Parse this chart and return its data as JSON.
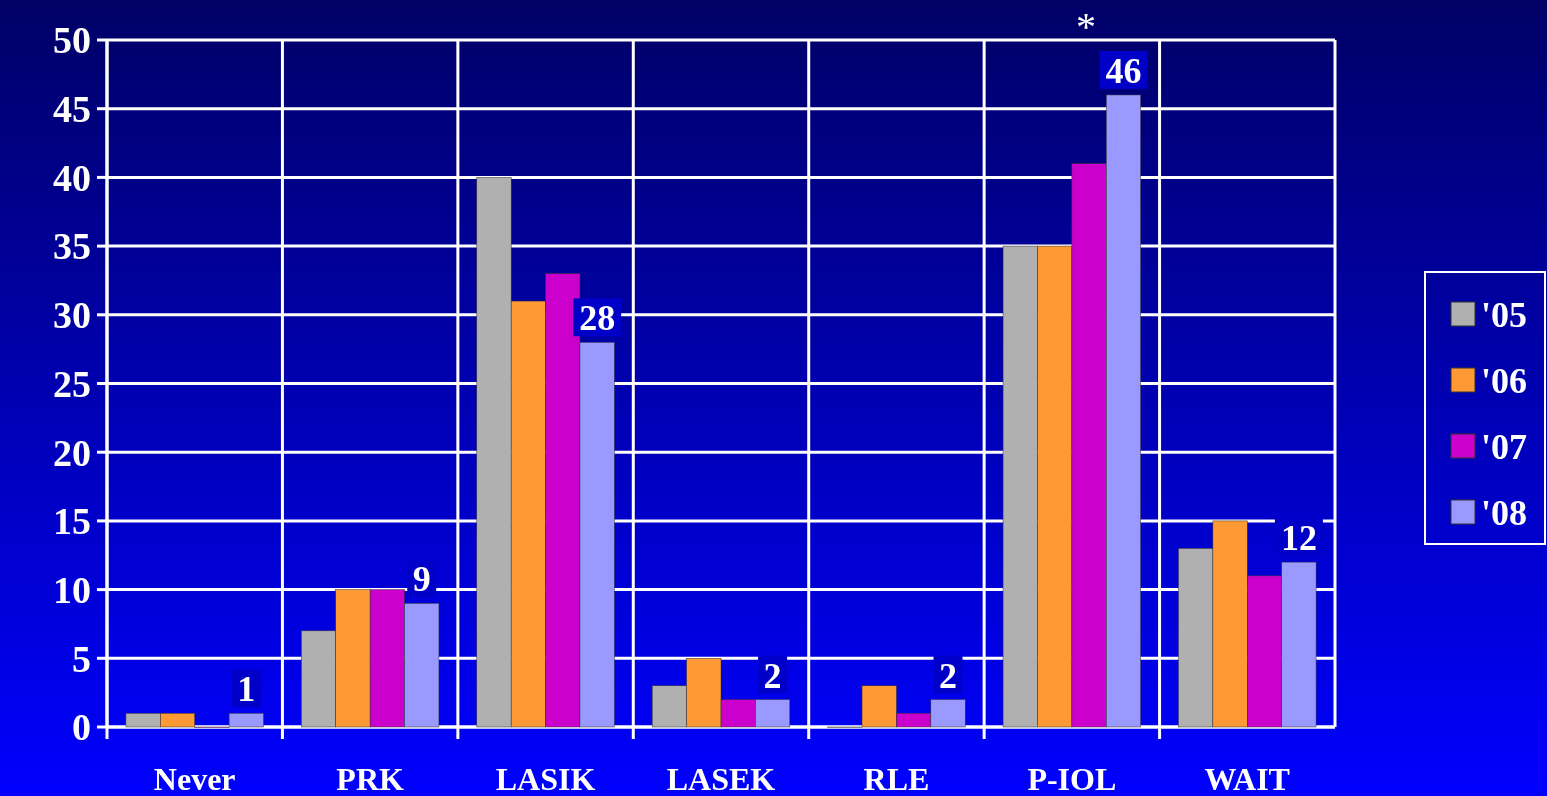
{
  "chart_data": {
    "type": "bar",
    "categories": [
      "Never",
      "PRK",
      "LASIK",
      "LASEK",
      "RLE",
      "P-IOL",
      "WAIT"
    ],
    "series": [
      {
        "name": "'05",
        "color": "#b0b0b0",
        "values": [
          1,
          7,
          40,
          3,
          0,
          35,
          13
        ]
      },
      {
        "name": "'06",
        "color": "#ff9933",
        "values": [
          1,
          10,
          31,
          5,
          3,
          35,
          15
        ]
      },
      {
        "name": "'07",
        "color": "#cc00cc",
        "values": [
          0,
          10,
          33,
          2,
          1,
          41,
          11
        ]
      },
      {
        "name": "'08",
        "color": "#9999ff",
        "values": [
          1,
          9,
          28,
          2,
          2,
          46,
          12
        ],
        "value_labels": [
          "1",
          "9",
          "28",
          "2",
          "2",
          "46",
          "12"
        ]
      }
    ],
    "ylim": [
      0,
      50
    ],
    "yticks": [
      0,
      5,
      10,
      15,
      20,
      25,
      30,
      35,
      40,
      45,
      50
    ],
    "grid": true,
    "legend": "right",
    "annotations": [
      "*"
    ]
  }
}
